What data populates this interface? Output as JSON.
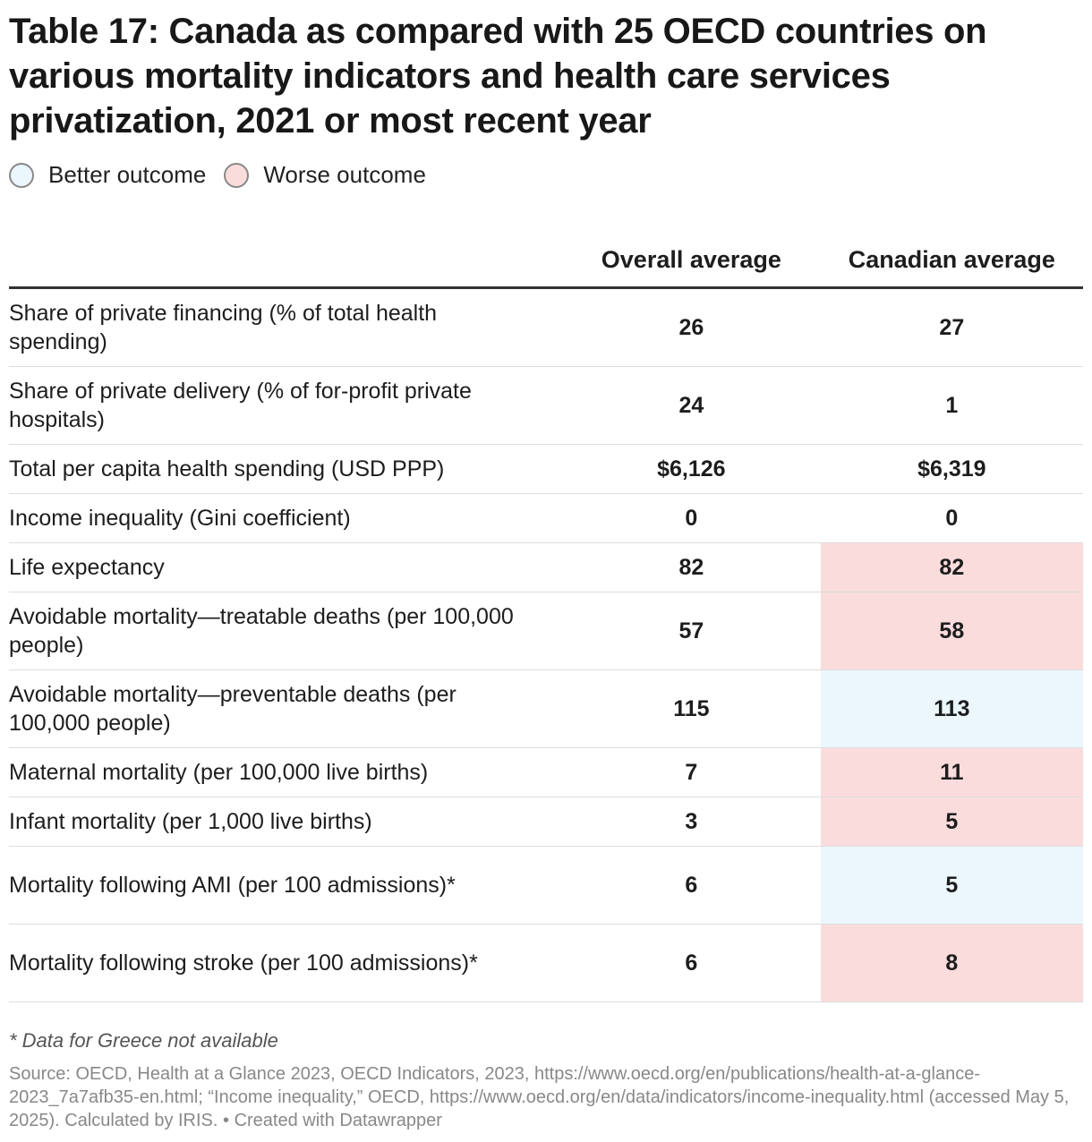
{
  "title": "Table 17: Canada as compared with 25 OECD countries on various mortality indicators and health care services privatization, 2021 or most recent year",
  "legend": [
    {
      "label": "Better outcome",
      "color": "#ebf6fd"
    },
    {
      "label": "Worse outcome",
      "color": "#fbdcdd"
    }
  ],
  "chart_data": {
    "type": "table",
    "columns": [
      "",
      "Overall average",
      "Canadian average"
    ],
    "rows": [
      {
        "label": "Share of private financing (% of total health spending)",
        "overall": "26",
        "canada": "27",
        "outcome": null
      },
      {
        "label": "Share of private delivery (% of for-profit private hospitals)",
        "overall": "24",
        "canada": "1",
        "outcome": null
      },
      {
        "label": "Total per capita health spending (USD PPP)",
        "overall": "$6,126",
        "canada": "$6,319",
        "outcome": null
      },
      {
        "label": "Income inequality (Gini coefficient)",
        "overall": "0",
        "canada": "0",
        "outcome": null
      },
      {
        "label": "Life expectancy",
        "overall": "82",
        "canada": "82",
        "outcome": "worse"
      },
      {
        "label": "Avoidable mortality—treatable deaths (per 100,000 people)",
        "overall": "57",
        "canada": "58",
        "outcome": "worse"
      },
      {
        "label": "Avoidable mortality—preventable deaths (per 100,000 people)",
        "overall": "115",
        "canada": "113",
        "outcome": "better"
      },
      {
        "label": "Maternal mortality (per 100,000 live births)",
        "overall": "7",
        "canada": "11",
        "outcome": "worse"
      },
      {
        "label": "Infant mortality (per 1,000 live births)",
        "overall": "3",
        "canada": "5",
        "outcome": "worse"
      },
      {
        "label": "Mortality following AMI (per 100 admissions)*",
        "overall": "6",
        "canada": "5",
        "outcome": "better"
      },
      {
        "label": "Mortality following stroke (per 100 admissions)*",
        "overall": "6",
        "canada": "8",
        "outcome": "worse"
      }
    ]
  },
  "note": "* Data for Greece not available",
  "source": "Source: OECD, Health at a Glance 2023, OECD Indicators, 2023, https://www.oecd.org/en/publications/health-at-a-glance-2023_7a7afb35-en.html; “Income inequality,” OECD, https://www.oecd.org/en/data/indicators/income-inequality.html (accessed May 5, 2025). Calculated by IRIS. • Created with Datawrapper"
}
